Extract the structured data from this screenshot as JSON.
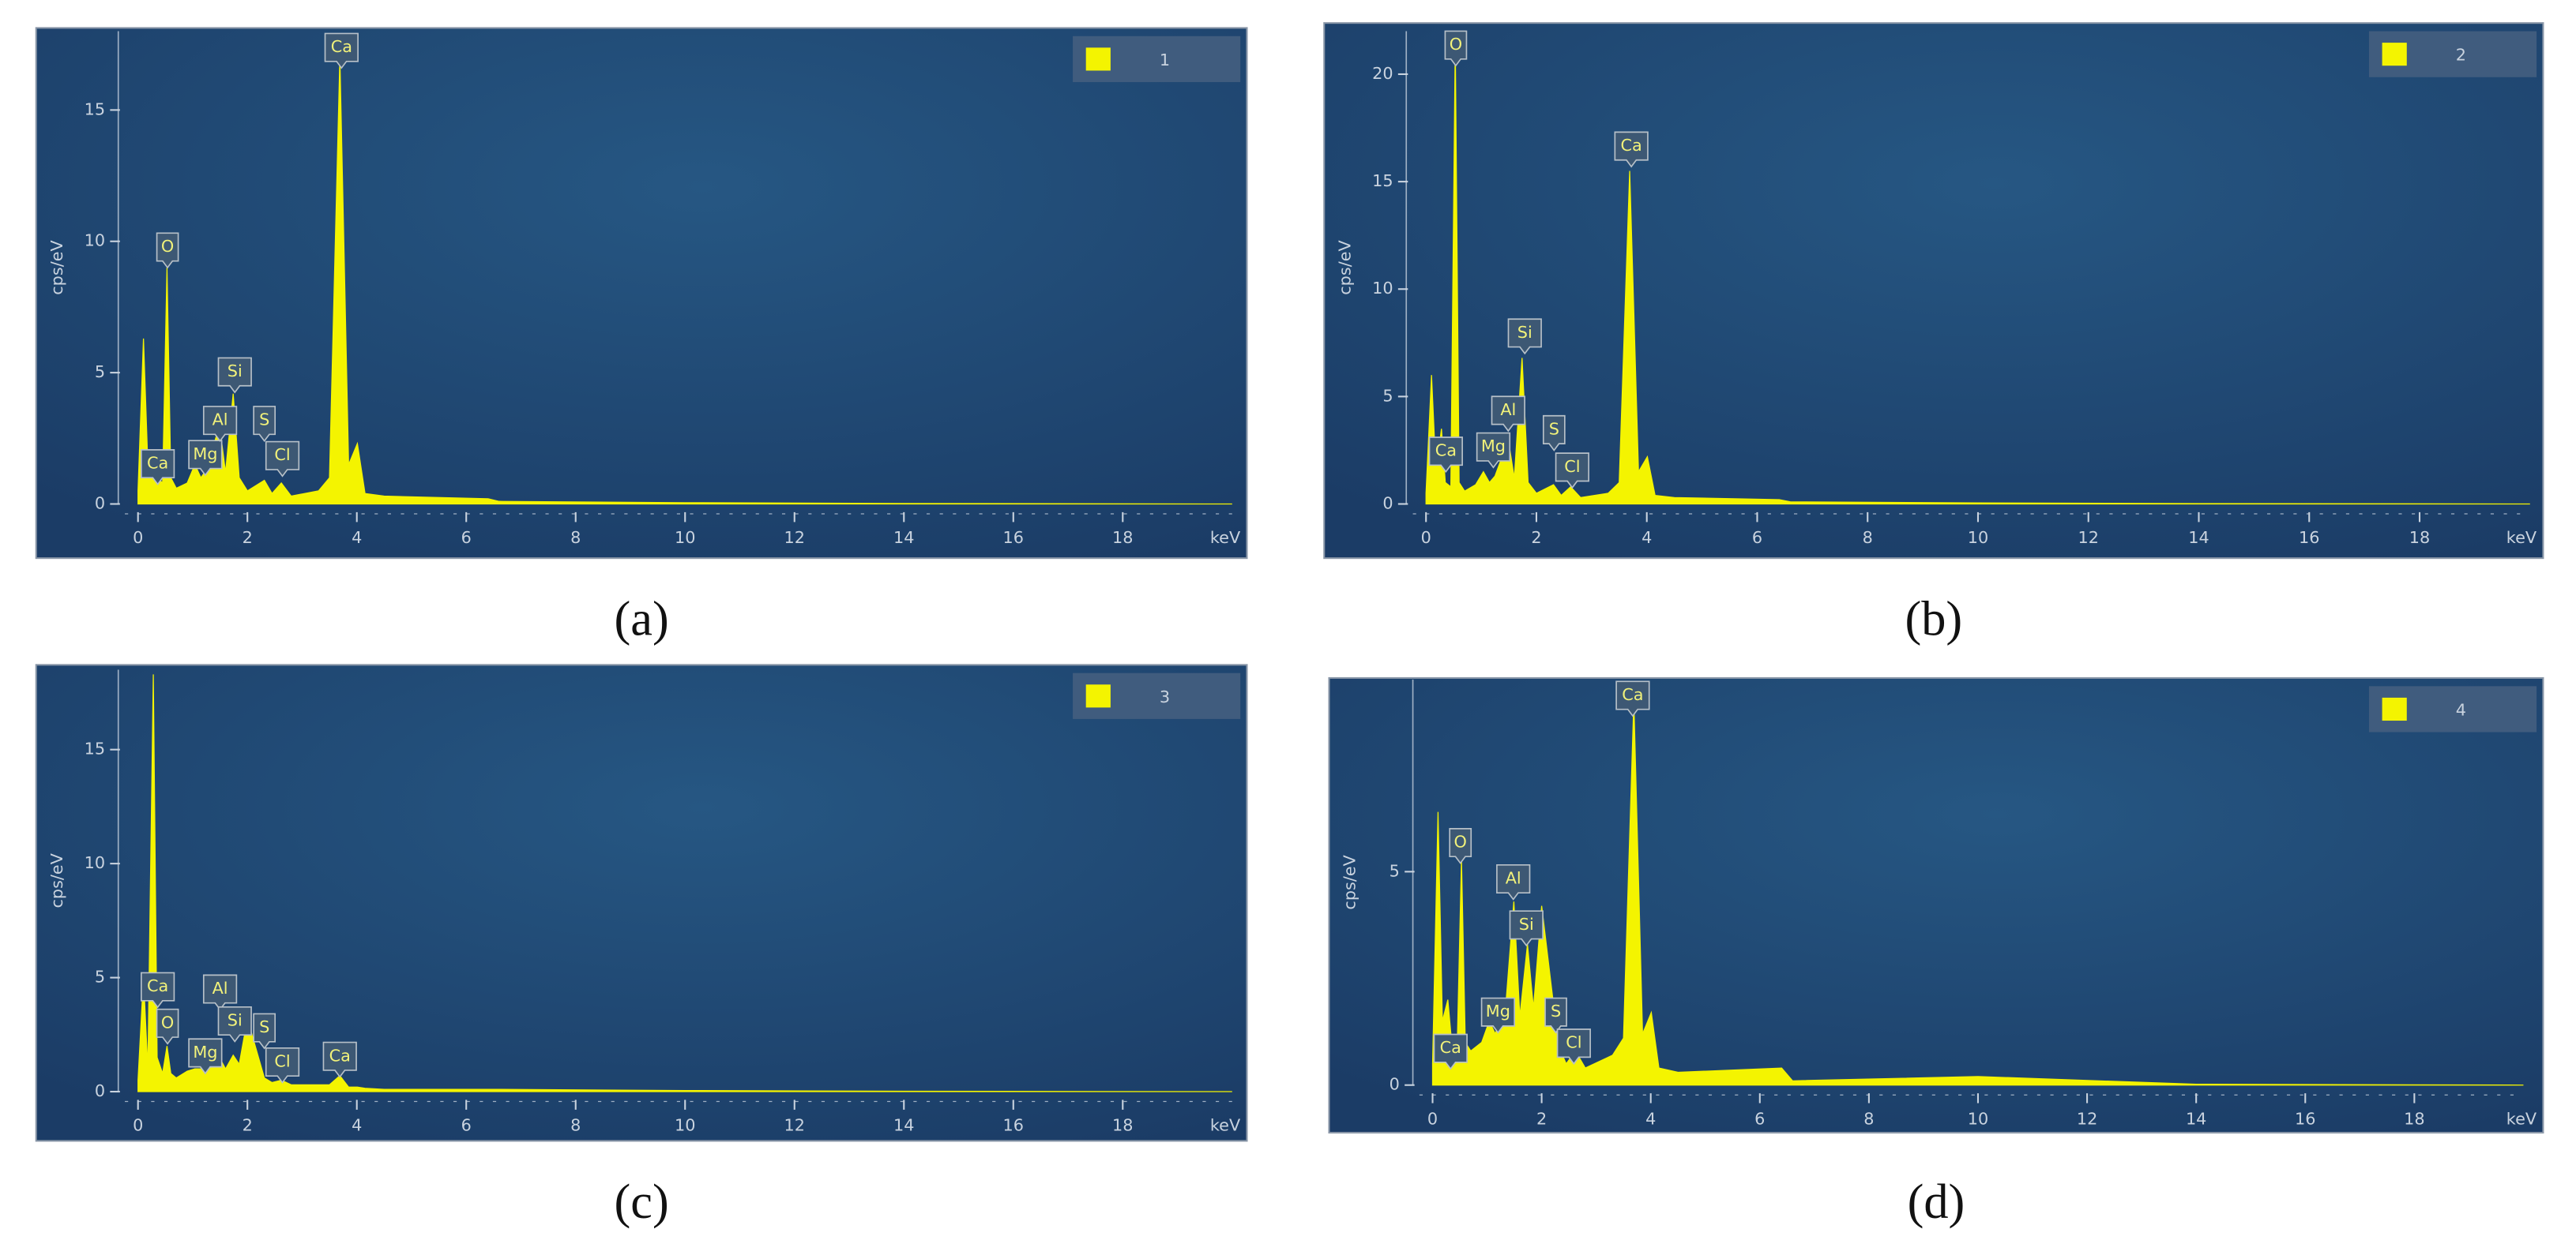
{
  "chart_data": [
    {
      "type": "area",
      "caption": "(a)",
      "x_label": "keV",
      "y_label": "cps/eV",
      "color": "#f4f400",
      "xlim": [
        0,
        20
      ],
      "ylim": [
        0,
        18
      ],
      "xticks": [
        0,
        2,
        4,
        6,
        8,
        10,
        12,
        14,
        16,
        18
      ],
      "yticks": [
        0,
        5,
        10,
        15
      ],
      "series": [
        {
          "name": "1",
          "color": "#f4f400",
          "x": [
            0,
            0.1,
            0.18,
            0.28,
            0.35,
            0.45,
            0.53,
            0.6,
            0.7,
            0.9,
            1.04,
            1.15,
            1.25,
            1.35,
            1.49,
            1.6,
            1.74,
            1.85,
            2.0,
            2.31,
            2.45,
            2.62,
            2.8,
            3.3,
            3.5,
            3.69,
            3.85,
            4.01,
            4.15,
            4.5,
            6.4,
            6.6,
            10,
            14,
            20
          ],
          "values": [
            0.5,
            6.3,
            1.5,
            2.0,
            1.0,
            0.8,
            9.0,
            1.0,
            0.6,
            0.8,
            1.5,
            1.0,
            1.3,
            2.0,
            3.0,
            1.2,
            4.2,
            1.0,
            0.5,
            0.9,
            0.4,
            0.8,
            0.3,
            0.5,
            1.0,
            17.0,
            1.5,
            2.3,
            0.4,
            0.3,
            0.2,
            0.1,
            0.05,
            0.02,
            0.0
          ]
        }
      ],
      "annotations": [
        {
          "text": "Ca",
          "x": 0.36,
          "y": 0.75
        },
        {
          "text": "O",
          "x": 0.54,
          "y": 9.0
        },
        {
          "text": "Mg",
          "x": 1.23,
          "y": 1.1
        },
        {
          "text": "Al",
          "x": 1.5,
          "y": 2.4
        },
        {
          "text": "Si",
          "x": 1.77,
          "y": 4.25
        },
        {
          "text": "S",
          "x": 2.31,
          "y": 2.4
        },
        {
          "text": "Cl",
          "x": 2.64,
          "y": 1.06
        },
        {
          "text": "Ca",
          "x": 3.72,
          "y": 16.6
        }
      ]
    },
    {
      "type": "area",
      "caption": "(b)",
      "x_label": "keV",
      "y_label": "cps/eV",
      "color": "#f4f400",
      "xlim": [
        0,
        20
      ],
      "ylim": [
        0,
        22
      ],
      "xticks": [
        0,
        2,
        4,
        6,
        8,
        10,
        12,
        14,
        16,
        18
      ],
      "yticks": [
        0,
        5,
        10,
        15,
        20
      ],
      "series": [
        {
          "name": "2",
          "color": "#f4f400",
          "x": [
            0,
            0.1,
            0.18,
            0.28,
            0.35,
            0.45,
            0.53,
            0.6,
            0.7,
            0.9,
            1.04,
            1.15,
            1.25,
            1.35,
            1.49,
            1.6,
            1.74,
            1.85,
            2.0,
            2.31,
            2.45,
            2.62,
            2.8,
            3.3,
            3.5,
            3.69,
            3.85,
            4.01,
            4.15,
            4.5,
            6.4,
            6.6,
            10,
            14,
            20
          ],
          "values": [
            0.5,
            6.0,
            1.5,
            3.5,
            1.0,
            0.8,
            21.5,
            1.0,
            0.6,
            0.9,
            1.5,
            1.0,
            1.3,
            2.0,
            3.0,
            1.2,
            6.8,
            1.0,
            0.5,
            0.9,
            0.4,
            0.8,
            0.3,
            0.5,
            1.0,
            15.5,
            1.5,
            2.2,
            0.4,
            0.3,
            0.2,
            0.1,
            0.05,
            0.02,
            0.0
          ]
        }
      ],
      "annotations": [
        {
          "text": "Ca",
          "x": 0.36,
          "y": 1.5
        },
        {
          "text": "O",
          "x": 0.54,
          "y": 20.4
        },
        {
          "text": "Mg",
          "x": 1.22,
          "y": 1.7
        },
        {
          "text": "Al",
          "x": 1.49,
          "y": 3.4
        },
        {
          "text": "Si",
          "x": 1.79,
          "y": 7.0
        },
        {
          "text": "S",
          "x": 2.32,
          "y": 2.5
        },
        {
          "text": "Cl",
          "x": 2.65,
          "y": 0.76
        },
        {
          "text": "Ca",
          "x": 3.72,
          "y": 15.7
        }
      ]
    },
    {
      "type": "area",
      "caption": "(c)",
      "x_label": "keV",
      "y_label": "cps/eV",
      "color": "#f4f400",
      "xlim": [
        0,
        20
      ],
      "ylim": [
        0,
        18.5
      ],
      "xticks": [
        0,
        2,
        4,
        6,
        8,
        10,
        12,
        14,
        16,
        18
      ],
      "yticks": [
        0,
        5,
        10,
        15
      ],
      "series": [
        {
          "name": "3",
          "color": "#f4f400",
          "x": [
            0,
            0.1,
            0.18,
            0.28,
            0.35,
            0.45,
            0.53,
            0.6,
            0.7,
            0.9,
            1.04,
            1.15,
            1.25,
            1.35,
            1.49,
            1.6,
            1.74,
            1.85,
            2.0,
            2.31,
            2.45,
            2.62,
            2.8,
            3.3,
            3.5,
            3.69,
            3.85,
            4.01,
            4.15,
            4.5,
            6.4,
            6.6,
            10,
            14,
            20
          ],
          "values": [
            0.5,
            5.0,
            1.0,
            18.3,
            1.5,
            0.8,
            2.0,
            0.8,
            0.6,
            0.9,
            1.0,
            1.0,
            1.0,
            1.3,
            1.5,
            1.0,
            1.6,
            1.2,
            3.2,
            0.6,
            0.4,
            0.5,
            0.3,
            0.3,
            0.3,
            0.7,
            0.2,
            0.2,
            0.15,
            0.1,
            0.1,
            0.1,
            0.05,
            0.02,
            0.0
          ]
        }
      ],
      "annotations": [
        {
          "text": "Ca",
          "x": 0.36,
          "y": 3.7
        },
        {
          "text": "O",
          "x": 0.54,
          "y": 2.1
        },
        {
          "text": "Al",
          "x": 1.5,
          "y": 3.6
        },
        {
          "text": "Mg",
          "x": 1.23,
          "y": 0.8
        },
        {
          "text": "Si",
          "x": 1.77,
          "y": 2.2
        },
        {
          "text": "S",
          "x": 2.31,
          "y": 1.9
        },
        {
          "text": "Cl",
          "x": 2.64,
          "y": 0.4
        },
        {
          "text": "Ca",
          "x": 3.69,
          "y": 0.65
        }
      ]
    },
    {
      "type": "area",
      "caption": "(d)",
      "x_label": "keV",
      "y_label": "cps/eV",
      "color": "#f4f400",
      "xlim": [
        0,
        20
      ],
      "ylim": [
        0,
        9.5
      ],
      "xticks": [
        0,
        2,
        4,
        6,
        8,
        10,
        12,
        14,
        16,
        18
      ],
      "yticks": [
        0,
        5
      ],
      "series": [
        {
          "name": "4",
          "color": "#f4f400",
          "x": [
            0,
            0.1,
            0.18,
            0.28,
            0.35,
            0.45,
            0.53,
            0.6,
            0.7,
            0.9,
            1.04,
            1.15,
            1.25,
            1.35,
            1.49,
            1.6,
            1.74,
            1.85,
            2.0,
            2.31,
            2.45,
            2.62,
            2.8,
            3.3,
            3.5,
            3.69,
            3.85,
            4.01,
            4.15,
            4.5,
            6.4,
            6.6,
            10,
            14,
            20
          ],
          "values": [
            0.5,
            6.4,
            1.5,
            2.0,
            1.0,
            0.8,
            5.3,
            1.0,
            0.8,
            1.0,
            1.5,
            1.2,
            1.6,
            2.0,
            4.3,
            1.6,
            3.3,
            1.8,
            4.2,
            0.9,
            0.5,
            0.8,
            0.4,
            0.7,
            1.1,
            9.0,
            1.2,
            1.7,
            0.4,
            0.3,
            0.4,
            0.1,
            0.2,
            0.02,
            0.0
          ]
        }
      ],
      "annotations": [
        {
          "text": "Ca",
          "x": 0.33,
          "y": 0.38
        },
        {
          "text": "O",
          "x": 0.51,
          "y": 5.2
        },
        {
          "text": "Al",
          "x": 1.48,
          "y": 4.35
        },
        {
          "text": "Si",
          "x": 1.72,
          "y": 3.27
        },
        {
          "text": "Mg",
          "x": 1.2,
          "y": 1.23
        },
        {
          "text": "S",
          "x": 2.26,
          "y": 1.23
        },
        {
          "text": "Cl",
          "x": 2.59,
          "y": 0.5
        },
        {
          "text": "Ca",
          "x": 3.67,
          "y": 8.65
        }
      ]
    }
  ]
}
